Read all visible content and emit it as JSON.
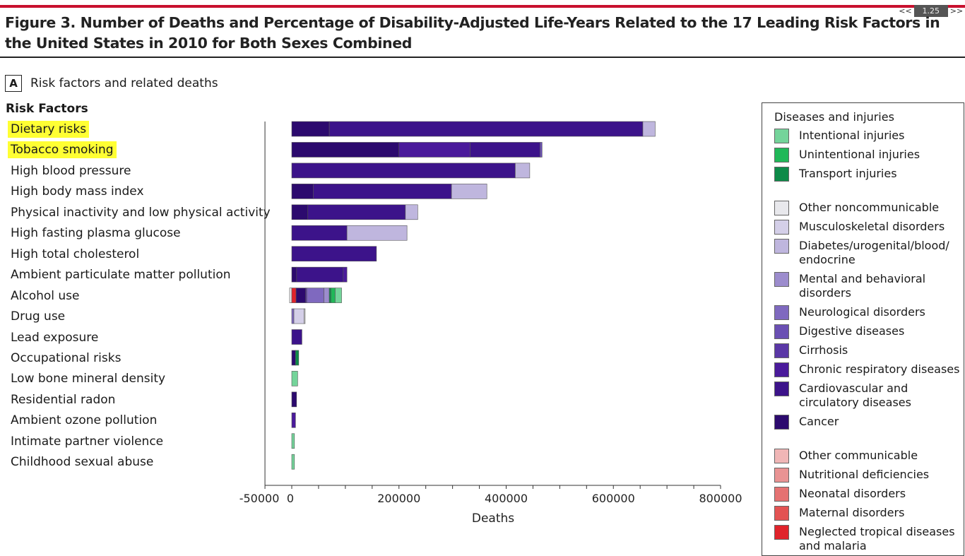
{
  "pager": {
    "prev": "<<",
    "zoom": "1.25",
    "next": ">>"
  },
  "figure_title": "Figure 3. Number of Deaths and Percentage of Disability-Adjusted Life-Years Related to the 17 Leading Risk Factors in the United States in 2010 for Both Sexes Combined",
  "panel": {
    "letter": "A",
    "title": "Risk factors and related deaths"
  },
  "risk_factors_heading": "Risk Factors",
  "legend": {
    "title": "Diseases and injuries",
    "items": [
      {
        "label": "Intentional injuries",
        "color": "#74d49a"
      },
      {
        "label": "Unintentional injuries",
        "color": "#20b858"
      },
      {
        "label": "Transport injuries",
        "color": "#0d8a48"
      },
      {
        "label": "Other noncommunicable",
        "color": "#e8e8ec"
      },
      {
        "label": "Musculoskeletal disorders",
        "color": "#d4cfe8"
      },
      {
        "label": "Diabetes/urogenital/blood/ endocrine",
        "color": "#bfb6de"
      },
      {
        "label": "Mental and behavioral disorders",
        "color": "#9c8ccd"
      },
      {
        "label": "Neurological disorders",
        "color": "#7f69bf"
      },
      {
        "label": "Digestive diseases",
        "color": "#6a4fb3"
      },
      {
        "label": "Cirrhosis",
        "color": "#5a37a6"
      },
      {
        "label": "Chronic respiratory diseases",
        "color": "#4a1a9b"
      },
      {
        "label": "Cardiovascular and circulatory diseases",
        "color": "#3c138a"
      },
      {
        "label": "Cancer",
        "color": "#2c0a6e"
      },
      {
        "label": "Other communicable",
        "color": "#f0b6b6"
      },
      {
        "label": "Nutritional deficiencies",
        "color": "#e99393"
      },
      {
        "label": "Neonatal disorders",
        "color": "#e57272"
      },
      {
        "label": "Maternal disorders",
        "color": "#e35353"
      },
      {
        "label": "Neglected tropical diseases and malaria",
        "color": "#e0232b"
      }
    ]
  },
  "chart_data": {
    "type": "bar",
    "orientation": "horizontal",
    "stacked": true,
    "xlabel": "Deaths",
    "ylabel": "",
    "xlim": [
      -50000,
      800000
    ],
    "xticks": [
      -50000,
      0,
      200000,
      400000,
      600000,
      800000
    ],
    "xtick_labels": [
      "-50000",
      "0",
      "200000",
      "400000",
      "600000",
      "800000"
    ],
    "categories": [
      "Dietary risks",
      "Tobacco smoking",
      "High blood pressure",
      "High body mass index",
      "Physical inactivity and low physical activity",
      "High fasting plasma glucose",
      "High total cholesterol",
      "Ambient particulate matter pollution",
      "Alcohol use",
      "Drug use",
      "Lead exposure",
      "Occupational risks",
      "Low bone mineral density",
      "Residential radon",
      "Ambient ozone pollution",
      "Intimate partner violence",
      "Childhood sexual abuse"
    ],
    "highlighted_categories": [
      "Dietary risks",
      "Tobacco smoking"
    ],
    "bars": [
      [
        {
          "series": "Cancer",
          "value": 70000
        },
        {
          "series": "Cardiovascular and circulatory diseases",
          "value": 585000
        },
        {
          "series": "Diabetes/urogenital/blood/ endocrine",
          "value": 23000
        }
      ],
      [
        {
          "series": "Cancer",
          "value": 200000
        },
        {
          "series": "Chronic respiratory diseases",
          "value": 133000
        },
        {
          "series": "Cardiovascular and circulatory diseases",
          "value": 130000
        },
        {
          "series": "Digestive diseases",
          "value": 4000
        }
      ],
      [
        {
          "series": "Cardiovascular and circulatory diseases",
          "value": 417000
        },
        {
          "series": "Diabetes/urogenital/blood/ endocrine",
          "value": 27000
        }
      ],
      [
        {
          "series": "Cancer",
          "value": 40000
        },
        {
          "series": "Cardiovascular and circulatory diseases",
          "value": 258000
        },
        {
          "series": "Diabetes/urogenital/blood/ endocrine",
          "value": 66000
        }
      ],
      [
        {
          "series": "Cancer",
          "value": 30000
        },
        {
          "series": "Cardiovascular and circulatory diseases",
          "value": 182000
        },
        {
          "series": "Diabetes/urogenital/blood/ endocrine",
          "value": 23000
        }
      ],
      [
        {
          "series": "Cardiovascular and circulatory diseases",
          "value": 103000
        },
        {
          "series": "Diabetes/urogenital/blood/ endocrine",
          "value": 112000
        }
      ],
      [
        {
          "series": "Cardiovascular and circulatory diseases",
          "value": 158000
        }
      ],
      [
        {
          "series": "Cancer",
          "value": 9000
        },
        {
          "series": "Cardiovascular and circulatory diseases",
          "value": 87000
        },
        {
          "series": "Chronic respiratory diseases",
          "value": 7000
        }
      ],
      [
        {
          "series": "Other noncommunicable",
          "value": -4000
        },
        {
          "series": "Neglected tropical diseases and malaria",
          "value": 8000
        },
        {
          "series": "Cancer",
          "value": 18000
        },
        {
          "series": "Cirrhosis",
          "value": 2000
        },
        {
          "series": "Neurological disorders",
          "value": 32000
        },
        {
          "series": "Mental and behavioral disorders",
          "value": 10000
        },
        {
          "series": "Transport injuries",
          "value": 3000
        },
        {
          "series": "Unintentional injuries",
          "value": 8000
        },
        {
          "series": "Intentional injuries",
          "value": 12000
        }
      ],
      [
        {
          "series": "Neurological disorders",
          "value": 4000
        },
        {
          "series": "Musculoskeletal disorders",
          "value": 19000
        },
        {
          "series": "Other noncommunicable",
          "value": 2000
        }
      ],
      [
        {
          "series": "Cardiovascular and circulatory diseases",
          "value": 19000
        }
      ],
      [
        {
          "series": "Cancer",
          "value": 7000
        },
        {
          "series": "Transport injuries",
          "value": 6000
        }
      ],
      [
        {
          "series": "Intentional injuries",
          "value": 11000
        }
      ],
      [
        {
          "series": "Cancer",
          "value": 9000
        }
      ],
      [
        {
          "series": "Chronic respiratory diseases",
          "value": 7000
        }
      ],
      [
        {
          "series": "Intentional injuries",
          "value": 5000
        }
      ],
      [
        {
          "series": "Intentional injuries",
          "value": 5000
        }
      ]
    ]
  }
}
